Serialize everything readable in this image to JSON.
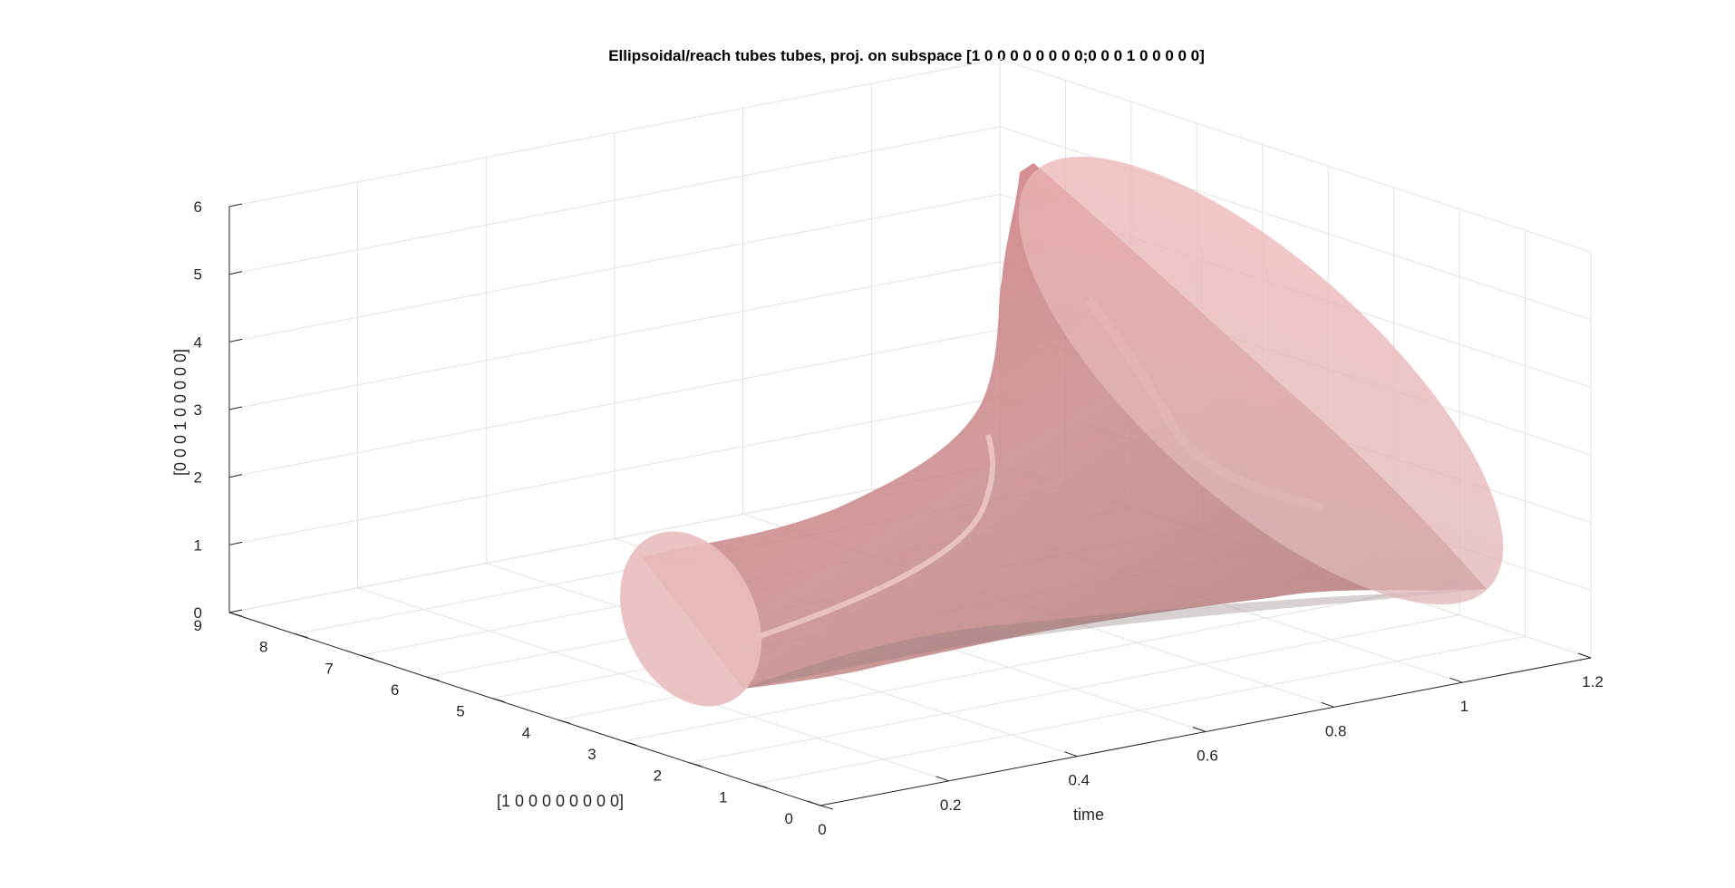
{
  "chart_data": {
    "type": "surface3d",
    "title": "Ellipsoidal/reach tubes tubes, proj. on subspace [1 0 0 0 0 0 0 0 0;0 0 0 1 0 0 0 0 0]",
    "xlabel": "time",
    "ylabel": "[1 0 0 0 0 0 0 0 0]",
    "zlabel": "[0 0 0 1 0 0 0 0 0]",
    "xlim": [
      0,
      1.2
    ],
    "ylim": [
      0,
      9
    ],
    "zlim": [
      0,
      6
    ],
    "x_ticks": [
      "0",
      "0.2",
      "0.4",
      "0.6",
      "0.8",
      "1",
      "1.2"
    ],
    "y_ticks": [
      "0",
      "1",
      "2",
      "3",
      "4",
      "5",
      "6",
      "7",
      "8",
      "9"
    ],
    "z_ticks": [
      "0",
      "1",
      "2",
      "3",
      "4",
      "5",
      "6"
    ],
    "grid": true,
    "surface_color": "#d97b7b",
    "cap_color": "#f2c4c4",
    "series": [
      {
        "time": [
          0,
          0.2,
          0.4,
          0.6,
          0.8,
          1.0,
          1.1
        ],
        "center_y": [
          4.6,
          4.7,
          4.8,
          4.9,
          4.8,
          4.6,
          4.5
        ],
        "center_z": [
          0.9,
          1.0,
          1.2,
          1.6,
          2.3,
          2.8,
          3.0
        ],
        "semi_axis_y": [
          0.9,
          1.1,
          1.4,
          2.0,
          3.0,
          4.0,
          4.4
        ],
        "semi_axis_z": [
          0.7,
          0.9,
          1.2,
          1.8,
          2.8,
          3.5,
          3.8
        ]
      }
    ]
  }
}
